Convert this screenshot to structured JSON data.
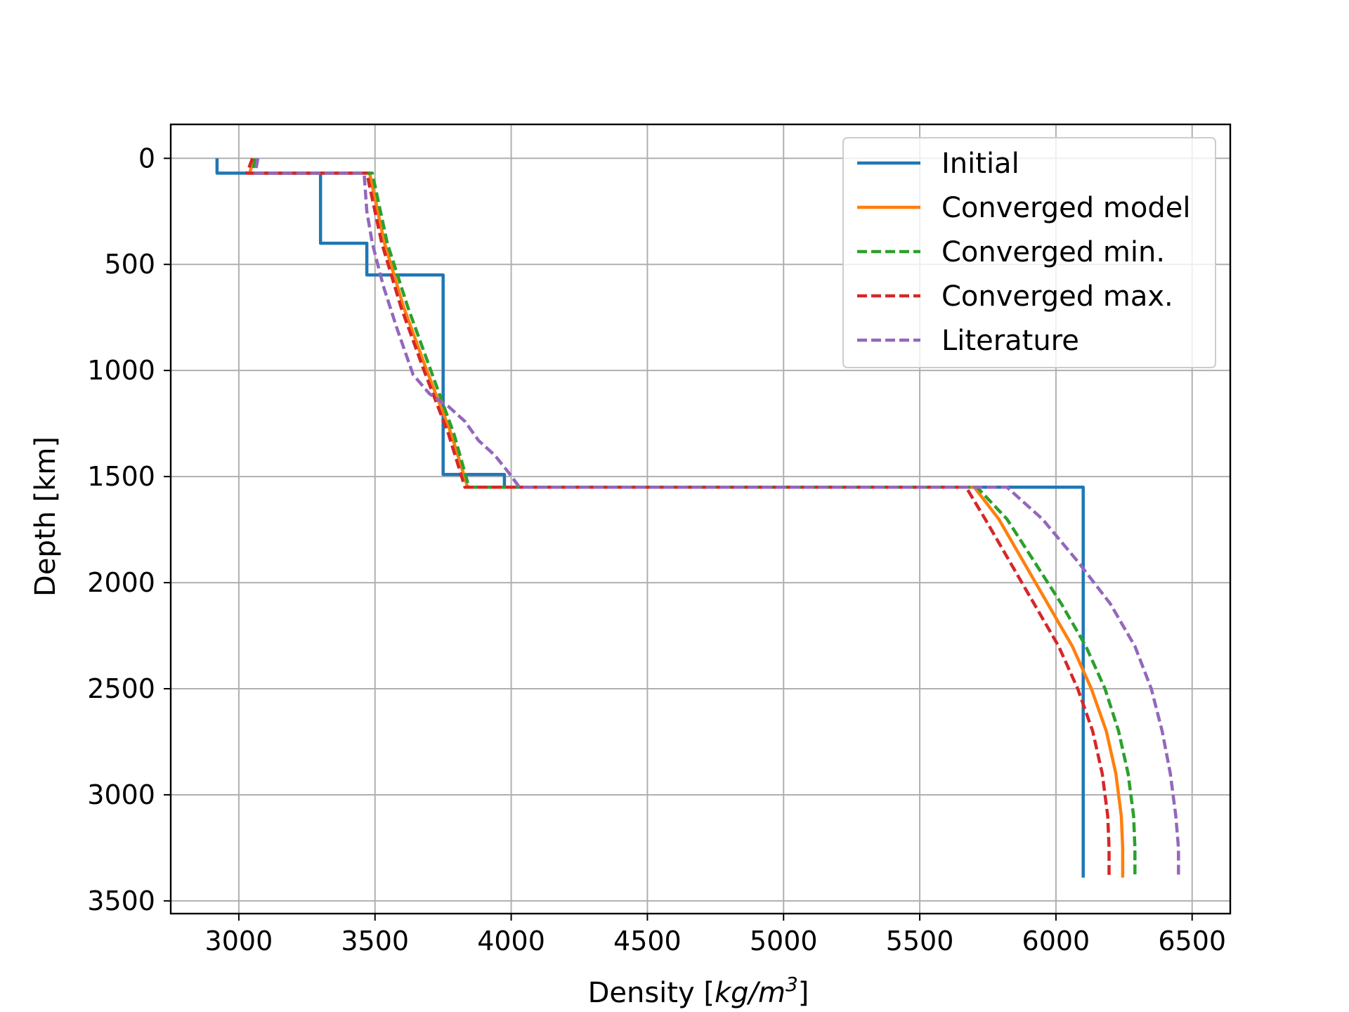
{
  "chart_data": {
    "type": "line",
    "title": "",
    "xlabel": "Density [kg/m^3]",
    "xlabel_prefix": "Density [",
    "xlabel_unit": "kg/m",
    "xlabel_exp": "3",
    "xlabel_suffix": "]",
    "ylabel": "Depth [km]",
    "xlim": [
      2750,
      6640
    ],
    "ylim": [
      3560,
      -160
    ],
    "y_inverted": true,
    "xticks": [
      3000,
      3500,
      4000,
      4500,
      5000,
      5500,
      6000,
      6500
    ],
    "xtick_labels": [
      "3000",
      "3500",
      "4000",
      "4500",
      "5000",
      "5500",
      "6000",
      "6500"
    ],
    "yticks": [
      0,
      500,
      1000,
      1500,
      2000,
      2500,
      3000,
      3500
    ],
    "ytick_labels": [
      "0",
      "500",
      "1000",
      "1500",
      "2000",
      "2500",
      "3000",
      "3500"
    ],
    "grid": true,
    "legend_position": "top-right",
    "series": [
      {
        "name": "Initial",
        "color": "#1f77b4",
        "dash": "solid",
        "points": [
          [
            2920,
            0
          ],
          [
            2920,
            70
          ],
          [
            3300,
            70
          ],
          [
            3300,
            400
          ],
          [
            3470,
            400
          ],
          [
            3470,
            550
          ],
          [
            3750,
            550
          ],
          [
            3750,
            1490
          ],
          [
            3975,
            1490
          ],
          [
            3975,
            1550
          ],
          [
            6100,
            1550
          ],
          [
            6100,
            3390
          ]
        ]
      },
      {
        "name": "Converged model",
        "color": "#ff7f0e",
        "dash": "solid",
        "points": [
          [
            3055,
            0
          ],
          [
            3040,
            70
          ],
          [
            3480,
            70
          ],
          [
            3535,
            400
          ],
          [
            3605,
            700
          ],
          [
            3690,
            1000
          ],
          [
            3780,
            1300
          ],
          [
            3840,
            1550
          ],
          [
            5700,
            1550
          ],
          [
            5790,
            1700
          ],
          [
            5880,
            1900
          ],
          [
            5970,
            2100
          ],
          [
            6060,
            2300
          ],
          [
            6130,
            2500
          ],
          [
            6185,
            2700
          ],
          [
            6220,
            2900
          ],
          [
            6240,
            3100
          ],
          [
            6245,
            3250
          ],
          [
            6245,
            3390
          ]
        ]
      },
      {
        "name": "Converged min.",
        "color": "#2ca02c",
        "dash": "dashed",
        "points": [
          [
            3060,
            0
          ],
          [
            3050,
            70
          ],
          [
            3490,
            70
          ],
          [
            3545,
            400
          ],
          [
            3620,
            700
          ],
          [
            3705,
            1000
          ],
          [
            3790,
            1300
          ],
          [
            3845,
            1550
          ],
          [
            5710,
            1550
          ],
          [
            5820,
            1700
          ],
          [
            5920,
            1900
          ],
          [
            6020,
            2100
          ],
          [
            6110,
            2300
          ],
          [
            6180,
            2500
          ],
          [
            6230,
            2700
          ],
          [
            6265,
            2900
          ],
          [
            6285,
            3100
          ],
          [
            6290,
            3250
          ],
          [
            6290,
            3390
          ]
        ]
      },
      {
        "name": "Converged max.",
        "color": "#d62728",
        "dash": "dashed",
        "points": [
          [
            3050,
            0
          ],
          [
            3030,
            70
          ],
          [
            3470,
            70
          ],
          [
            3525,
            400
          ],
          [
            3595,
            700
          ],
          [
            3680,
            1000
          ],
          [
            3770,
            1300
          ],
          [
            3830,
            1550
          ],
          [
            5670,
            1550
          ],
          [
            5740,
            1700
          ],
          [
            5830,
            1900
          ],
          [
            5920,
            2100
          ],
          [
            6010,
            2300
          ],
          [
            6080,
            2500
          ],
          [
            6135,
            2700
          ],
          [
            6170,
            2900
          ],
          [
            6190,
            3100
          ],
          [
            6195,
            3250
          ],
          [
            6195,
            3390
          ]
        ]
      },
      {
        "name": "Literature",
        "color": "#9467bd",
        "dash": "dashed",
        "points": [
          [
            3070,
            0
          ],
          [
            3060,
            70
          ],
          [
            3460,
            70
          ],
          [
            3470,
            250
          ],
          [
            3490,
            400
          ],
          [
            3530,
            600
          ],
          [
            3580,
            800
          ],
          [
            3640,
            1020
          ],
          [
            3700,
            1110
          ],
          [
            3770,
            1170
          ],
          [
            3830,
            1240
          ],
          [
            3880,
            1330
          ],
          [
            3940,
            1400
          ],
          [
            3990,
            1480
          ],
          [
            4030,
            1550
          ],
          [
            5820,
            1550
          ],
          [
            5950,
            1700
          ],
          [
            6080,
            1900
          ],
          [
            6200,
            2100
          ],
          [
            6290,
            2300
          ],
          [
            6350,
            2500
          ],
          [
            6390,
            2700
          ],
          [
            6420,
            2900
          ],
          [
            6440,
            3100
          ],
          [
            6450,
            3250
          ],
          [
            6450,
            3390
          ]
        ]
      }
    ]
  }
}
